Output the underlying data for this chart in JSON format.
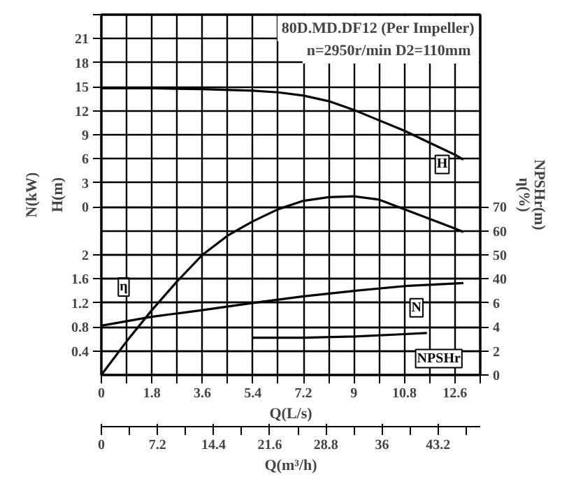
{
  "chart_data": [
    {
      "type": "line",
      "title": "80D.MD.DF12 (Per Impeller)",
      "subtitle": "n=2950r/min  D2=110mm",
      "xlabel": "Q(L/s)",
      "xlim": [
        0,
        13.5
      ],
      "xticks": [
        0,
        {
          "value": 0.9,
          "label": null
        },
        1.8,
        {
          "value": 2.7,
          "label": null
        },
        3.6,
        {
          "value": 4.5,
          "label": null
        },
        5.4,
        {
          "value": 6.3,
          "label": null
        },
        7.2,
        {
          "value": 8.1,
          "label": null
        },
        9,
        {
          "value": 9.9,
          "label": null
        },
        10.8,
        {
          "value": 11.7,
          "label": null
        },
        12.6,
        {
          "value": 13.5,
          "label": null
        }
      ],
      "x2label": "Q(m³/h)",
      "x2lim": [
        0,
        48.6
      ],
      "x2ticks": [
        0,
        7.2,
        14.4,
        21.6,
        28.8,
        36,
        43.2
      ],
      "ylabel": "H(m)",
      "ylim": [
        -21,
        24
      ],
      "yticks": [
        0,
        3,
        6,
        9,
        12,
        15,
        18,
        21,
        {
          "value": 24,
          "label": null
        }
      ],
      "y2label": "η(%)",
      "y2lim": [
        0,
        150
      ],
      "y2ticks": [
        40,
        50,
        60,
        70
      ],
      "grid": true,
      "series": [
        {
          "name": "H",
          "color": "#000000",
          "x": [
            0,
            1.8,
            3.6,
            5.4,
            6.3,
            7.2,
            8.1,
            9,
            9.9,
            10.8,
            11.7,
            12.6,
            12.9
          ],
          "values": [
            14.8,
            14.8,
            14.7,
            14.5,
            14.3,
            13.9,
            13.2,
            12.1,
            10.8,
            9.5,
            8.0,
            6.5,
            5.9
          ]
        },
        {
          "name": "η",
          "color": "#000000",
          "axis": "y2",
          "x": [
            0,
            0.9,
            1.8,
            2.7,
            3.6,
            4.5,
            5.4,
            6.3,
            7.2,
            8.1,
            9,
            9.9,
            10.8,
            11.7,
            12.6,
            12.9
          ],
          "values": [
            0,
            14,
            27,
            39,
            50,
            58,
            64,
            69,
            72.5,
            74,
            74.4,
            73,
            69,
            65,
            61,
            59.5
          ]
        }
      ]
    },
    {
      "type": "line",
      "xlim": [
        0,
        13.5
      ],
      "tick_labels": "y",
      "ylabel": "N(kW)",
      "ylim": [
        0,
        6
      ],
      "yticks": [
        0.4,
        0.8,
        1.2,
        1.6,
        2
      ],
      "y2label": "NPSHr(m)",
      "y2lim": [
        0,
        30
      ],
      "y2ticks": [
        0,
        2,
        4,
        6
      ],
      "grid": true,
      "series": [
        {
          "name": "N",
          "color": "#000000",
          "x": [
            0,
            1.8,
            3.6,
            5.4,
            7.2,
            9,
            10.8,
            12.9
          ],
          "values": [
            0.82,
            0.97,
            1.08,
            1.2,
            1.31,
            1.4,
            1.48,
            1.53
          ]
        },
        {
          "name": "NPSHr",
          "color": "#000000",
          "axis": "y2",
          "x": [
            5.4,
            7.2,
            9,
            10.8,
            11.6
          ],
          "values": [
            3.1,
            3.1,
            3.2,
            3.4,
            3.5
          ]
        }
      ]
    }
  ]
}
